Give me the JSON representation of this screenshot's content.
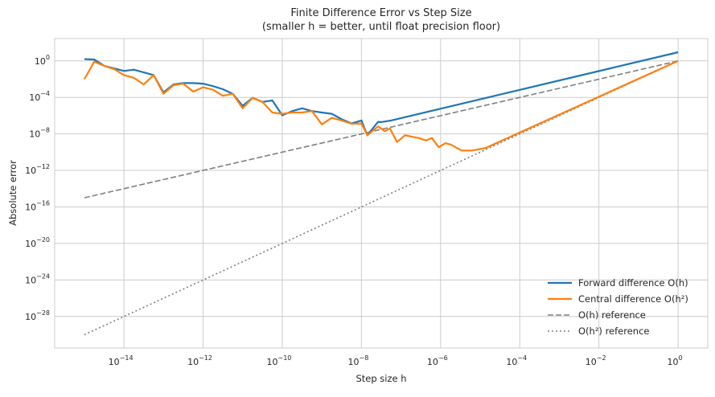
{
  "chart_data": {
    "type": "line",
    "title": "Finite Difference Error vs Step Size",
    "subtitle": "(smaller h = better, until float precision floor)",
    "xlabel": "Step size h",
    "ylabel": "Absolute error",
    "xscale": "log",
    "yscale": "log",
    "xlim": [
      1.78e-16,
      5.62
    ],
    "ylim": [
      3.5e-32,
      280.0
    ],
    "grid": true,
    "legend_position": "bottom-right",
    "xticks": [
      {
        "base": "10",
        "exp": "−14",
        "value": 1e-14
      },
      {
        "base": "10",
        "exp": "−12",
        "value": 1e-12
      },
      {
        "base": "10",
        "exp": "−10",
        "value": 1e-10
      },
      {
        "base": "10",
        "exp": "−8",
        "value": 1e-08
      },
      {
        "base": "10",
        "exp": "−6",
        "value": 1e-06
      },
      {
        "base": "10",
        "exp": "−4",
        "value": 0.0001
      },
      {
        "base": "10",
        "exp": "−2",
        "value": 0.01
      },
      {
        "base": "10",
        "exp": "0",
        "value": 1
      }
    ],
    "yticks": [
      {
        "base": "10",
        "exp": "0",
        "value": 1
      },
      {
        "base": "10",
        "exp": "−4",
        "value": 0.0001
      },
      {
        "base": "10",
        "exp": "−8",
        "value": 1e-08
      },
      {
        "base": "10",
        "exp": "−12",
        "value": 1e-12
      },
      {
        "base": "10",
        "exp": "−16",
        "value": 1e-16
      },
      {
        "base": "10",
        "exp": "−20",
        "value": 1e-20
      },
      {
        "base": "10",
        "exp": "−24",
        "value": 1e-24
      },
      {
        "base": "10",
        "exp": "−28",
        "value": 1e-28
      }
    ],
    "series": [
      {
        "name": "Forward difference O(h)",
        "color": "#1f77b4",
        "style": "solid",
        "x": [
          1e-15,
          1.78e-15,
          3.16e-15,
          5.62e-15,
          1e-14,
          1.78e-14,
          3.16e-14,
          5.62e-14,
          1e-13,
          1.78e-13,
          3.16e-13,
          5.62e-13,
          1e-12,
          1.78e-12,
          3.16e-12,
          5.62e-12,
          1e-11,
          1.78e-11,
          3.16e-11,
          5.62e-11,
          1e-10,
          1.78e-10,
          3.16e-10,
          5.62e-10,
          1e-09,
          1.78e-09,
          3.16e-09,
          5.62e-09,
          1e-08,
          1.41e-08,
          2.63e-08,
          3.16e-08,
          5.62e-08,
          1
        ],
        "y": [
          1.6,
          1.4,
          0.29,
          0.15,
          0.079,
          0.11,
          0.055,
          0.028,
          0.00035,
          0.0026,
          0.0037,
          0.0037,
          0.0032,
          0.0017,
          0.00079,
          0.00025,
          1.2e-05,
          9.1e-05,
          3.2e-05,
          4.6e-05,
          1.1e-06,
          3.2e-06,
          6.3e-06,
          3.2e-06,
          2.2e-06,
          1.6e-06,
          4e-07,
          1.4e-07,
          3e-07,
          7.1e-09,
          2.1e-07,
          2e-07,
          3e-07,
          8.9
        ]
      },
      {
        "name": "Central difference O(h²)",
        "color": "#ff7f0e",
        "style": "solid",
        "x": [
          1e-15,
          1.78e-15,
          3.16e-15,
          5.62e-15,
          1e-14,
          1.78e-14,
          3.16e-14,
          5.62e-14,
          1e-13,
          1.78e-13,
          3.16e-13,
          5.62e-13,
          1e-12,
          1.78e-12,
          3.16e-12,
          5.62e-12,
          1e-11,
          1.78e-11,
          3.16e-11,
          5.62e-11,
          1e-10,
          1.78e-10,
          3.16e-10,
          5.62e-10,
          1e-09,
          1.78e-09,
          3.16e-09,
          5.62e-09,
          1e-08,
          1.41e-08,
          2.63e-08,
          3.89e-08,
          5.25e-08,
          7.94e-08,
          1.26e-07,
          2.75e-07,
          4.37e-07,
          6.03e-07,
          8.91e-07,
          1.32e-06,
          1.82e-06,
          3.39e-06,
          6.31e-06,
          1.38e-05,
          1
        ],
        "y": [
          0.01,
          0.81,
          0.29,
          0.13,
          0.028,
          0.014,
          0.0026,
          0.028,
          0.00025,
          0.0022,
          0.0032,
          0.00043,
          0.0013,
          0.00069,
          0.00015,
          0.00025,
          6.3e-06,
          9.1e-05,
          3.2e-05,
          2.2e-06,
          1.6e-06,
          2.2e-06,
          2.2e-06,
          3.2e-06,
          1.1e-07,
          5.8e-07,
          3e-07,
          1.3e-07,
          1.4e-07,
          7.1e-09,
          6.6e-08,
          2e-08,
          3.9e-08,
          1.3e-09,
          7.1e-09,
          3.6e-09,
          1.9e-09,
          3.6e-09,
          3.5e-10,
          9.5e-10,
          6.8e-10,
          1.5e-10,
          1.5e-10,
          2.9e-10,
          1.0
        ]
      },
      {
        "name": "O(h) reference",
        "color": "#7f7f7f",
        "style": "dashed",
        "x": [
          1e-15,
          1
        ],
        "y": [
          1e-15,
          1
        ]
      },
      {
        "name": "O(h²) reference",
        "color": "#7f7f7f",
        "style": "dotted",
        "x": [
          1e-15,
          1
        ],
        "y": [
          1e-30,
          1
        ]
      }
    ]
  }
}
